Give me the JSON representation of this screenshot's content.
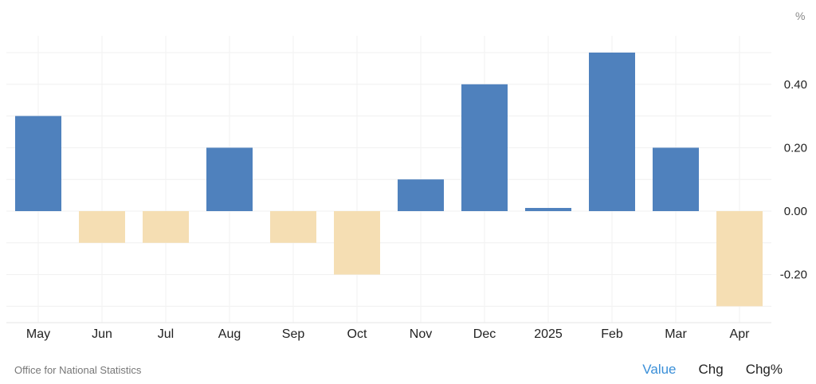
{
  "chart_data": {
    "type": "bar",
    "unit": "%",
    "categories": [
      "May",
      "Jun",
      "Jul",
      "Aug",
      "Sep",
      "Oct",
      "Nov",
      "Dec",
      "2025",
      "Feb",
      "Mar",
      "Apr"
    ],
    "values": [
      0.3,
      -0.1,
      -0.1,
      0.2,
      -0.1,
      -0.2,
      0.1,
      0.4,
      0.01,
      0.5,
      0.2,
      -0.3
    ],
    "ylim": [
      -0.36,
      0.55
    ],
    "yticks": [
      "0.40",
      "0.20",
      "0.00",
      "-0.20"
    ],
    "grid": true,
    "colors": {
      "positive": "#4f81bd",
      "negative": "#f5deb3"
    }
  },
  "footer": {
    "source": "Office for National Statistics",
    "tabs": [
      "Value",
      "Chg",
      "Chg%"
    ],
    "active_tab": "Value",
    "active_color": "#3a8fd8"
  }
}
